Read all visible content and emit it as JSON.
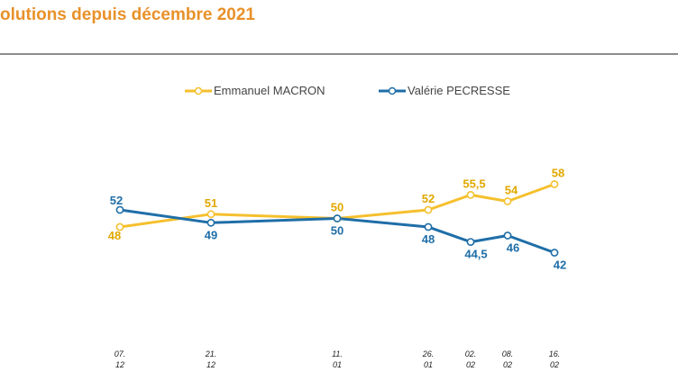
{
  "chart_data": {
    "type": "line",
    "title": "olutions depuis décembre 2021",
    "categories": [
      "07.\n12",
      "21.\n12",
      "11.\n01",
      "26.\n01",
      "02.\n02",
      "08.\n02",
      "16.\n02"
    ],
    "series": [
      {
        "name": "Emmanuel MACRON",
        "color": "#F5C02E",
        "label_color": "#E0A800",
        "values": [
          48,
          51,
          50,
          52,
          55.5,
          54,
          58
        ],
        "labels": [
          "48",
          "51",
          "50",
          "52",
          "55,5",
          "54",
          "58"
        ]
      },
      {
        "name": "Valérie PECRESSE",
        "color": "#1F6EA8",
        "label_color": "#1F6EA8",
        "values": [
          52,
          49,
          50,
          48,
          44.5,
          46,
          42
        ],
        "labels": [
          "52",
          "49",
          "50",
          "48",
          "44,5",
          "46",
          "42"
        ]
      }
    ],
    "ylim": [
      30,
      70
    ],
    "xlabel": "",
    "ylabel": ""
  },
  "colors": {
    "title": "#E8912A",
    "rule": "#8C8C8C"
  }
}
